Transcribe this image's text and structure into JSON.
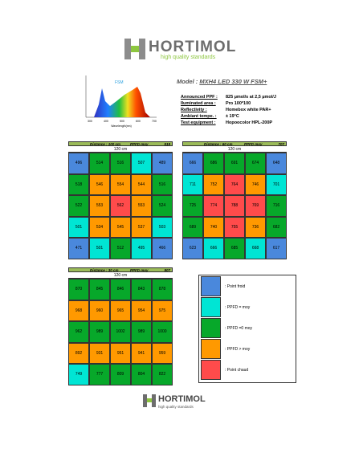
{
  "header": {
    "brand": "HORTIMOL",
    "tagline": "high quality standards"
  },
  "spectrum": {
    "label": "FSM",
    "x_axis": "Wavelength(nm)",
    "xticks": [
      "300",
      "400",
      "500",
      "600",
      "700"
    ]
  },
  "model": {
    "prefix": "Model :",
    "name": "MXH4 LED 330 W FSM+"
  },
  "specs": [
    [
      "Announced PPF :",
      "825 µmol/s at 2,5 µmol/J"
    ],
    [
      "Iluminated area :",
      "Pro 100*100"
    ],
    [
      "Reflectivity :",
      "Homebox white PAR+"
    ],
    [
      "Ambiant tempe. :",
      "± 19°C"
    ],
    [
      "Test equipment :",
      "Hopoocolor HPL-200P"
    ]
  ],
  "legend": [
    {
      "color": "#4a88dc",
      "label": ": Point froid"
    },
    {
      "color": "#00e5d4",
      "label": ": PPFD = moy"
    },
    {
      "color": "#07a82a",
      "label": ": PPFD =0 moy"
    },
    {
      "color": "#ff9900",
      "label": ": PPFD > moy"
    },
    {
      "color": "#ff4b4b",
      "label": ": Point chaud"
    }
  ],
  "grids": [
    {
      "distance": "Distance : 100 cm",
      "ppfd": "PPFD moy",
      "avg": "519",
      "width": "120 cm",
      "values": [
        [
          496,
          514,
          516,
          507,
          489
        ],
        [
          518,
          546,
          554,
          544,
          516
        ],
        [
          522,
          553,
          562,
          553,
          524
        ],
        [
          501,
          534,
          545,
          537,
          503
        ],
        [
          471,
          501,
          512,
          495,
          466
        ]
      ],
      "levels": [
        [
          0,
          2,
          2,
          1,
          0
        ],
        [
          2,
          3,
          3,
          3,
          2
        ],
        [
          2,
          3,
          4,
          3,
          2
        ],
        [
          1,
          3,
          3,
          3,
          1
        ],
        [
          0,
          1,
          2,
          1,
          0
        ]
      ]
    },
    {
      "distance": "Distance : 60 cm",
      "ppfd": "PPFD moy",
      "avg": "707",
      "width": "120 cm",
      "values": [
        [
          666,
          686,
          691,
          674,
          648
        ],
        [
          711,
          752,
          764,
          746,
          701
        ],
        [
          725,
          774,
          788,
          769,
          716
        ],
        [
          689,
          740,
          755,
          736,
          682
        ],
        [
          623,
          666,
          685,
          668,
          617
        ]
      ],
      "levels": [
        [
          0,
          2,
          2,
          2,
          0
        ],
        [
          1,
          3,
          4,
          3,
          1
        ],
        [
          2,
          4,
          4,
          4,
          2
        ],
        [
          2,
          3,
          4,
          3,
          2
        ],
        [
          0,
          1,
          2,
          1,
          0
        ]
      ]
    },
    {
      "distance": "Distance : 30 cm",
      "ppfd": "PPFD moy",
      "avg": "907",
      "width": "120 cm",
      "values": [
        [
          870,
          845,
          846,
          843,
          878
        ],
        [
          968,
          960,
          965,
          954,
          975
        ],
        [
          962,
          989,
          1002,
          989,
          1000
        ],
        [
          892,
          931,
          951,
          941,
          959
        ],
        [
          749,
          777,
          809,
          804,
          822
        ]
      ],
      "levels": [
        [
          2,
          2,
          2,
          2,
          2
        ],
        [
          3,
          3,
          3,
          3,
          3
        ],
        [
          2,
          2,
          2,
          2,
          2
        ],
        [
          3,
          3,
          3,
          3,
          3
        ],
        [
          1,
          2,
          2,
          2,
          2
        ]
      ]
    }
  ],
  "footer": {
    "brand": "HORTIMOL",
    "tagline": "high quality standards"
  }
}
